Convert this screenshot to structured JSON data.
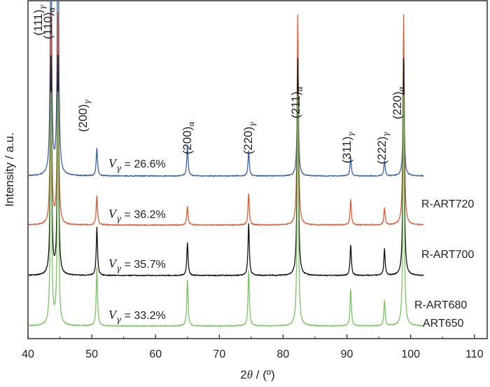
{
  "chart_data": {
    "type": "line",
    "xlabel": {
      "main": "2",
      "italic": "θ",
      "rest": " / (º)"
    },
    "ylabel": "Intensity / a.u.",
    "xlim": [
      40,
      112
    ],
    "x_ticks": [
      40,
      50,
      60,
      70,
      80,
      90,
      100,
      110
    ],
    "grid": false,
    "peaks": [
      {
        "hkl": "(111)",
        "phase": "γ",
        "x": 43.6
      },
      {
        "hkl": "(110)",
        "phase": "α",
        "x": 44.7
      },
      {
        "hkl": "(200)",
        "phase": "γ",
        "x": 50.8
      },
      {
        "hkl": "(200)",
        "phase": "α",
        "x": 65.0
      },
      {
        "hkl": "(220)",
        "phase": "γ",
        "x": 74.6
      },
      {
        "hkl": "(211)",
        "phase": "α",
        "x": 82.3
      },
      {
        "hkl": "(311)",
        "phase": "γ",
        "x": 90.6
      },
      {
        "hkl": "(222)",
        "phase": "γ",
        "x": 95.9
      },
      {
        "hkl": "(220)",
        "phase": "α",
        "x": 98.9
      }
    ],
    "series": [
      {
        "name": "R-ART720",
        "color": "#3a62b0",
        "vgamma": "26.6%",
        "peaks": [
          [
            43.6,
            0.9
          ],
          [
            44.7,
            1.0
          ],
          [
            50.8,
            0.09
          ],
          [
            65.0,
            0.1
          ],
          [
            74.6,
            0.08
          ],
          [
            82.3,
            0.38
          ],
          [
            90.6,
            0.06
          ],
          [
            95.9,
            0.05
          ],
          [
            98.9,
            0.33
          ]
        ]
      },
      {
        "name": "R-ART700",
        "color": "#e05a35",
        "vgamma": "36.2%",
        "peaks": [
          [
            43.6,
            1.0
          ],
          [
            44.7,
            1.0
          ],
          [
            50.8,
            0.14
          ],
          [
            65.0,
            0.09
          ],
          [
            74.6,
            0.15
          ],
          [
            82.3,
            1.0
          ],
          [
            90.6,
            0.12
          ],
          [
            95.9,
            0.08
          ],
          [
            98.9,
            1.0
          ]
        ]
      },
      {
        "name": "R-ART680",
        "color": "#111111",
        "vgamma": "35.7%",
        "peaks": [
          [
            43.6,
            1.0
          ],
          [
            44.7,
            1.0
          ],
          [
            50.8,
            0.22
          ],
          [
            65.0,
            0.15
          ],
          [
            74.6,
            0.24
          ],
          [
            82.3,
            1.0
          ],
          [
            90.6,
            0.14
          ],
          [
            95.9,
            0.12
          ],
          [
            98.9,
            1.0
          ]
        ]
      },
      {
        "name": "ART650",
        "color": "#79c461",
        "vgamma": "33.2%",
        "peaks": [
          [
            43.6,
            1.0
          ],
          [
            44.7,
            1.0
          ],
          [
            50.8,
            0.25
          ],
          [
            65.0,
            0.2
          ],
          [
            74.6,
            0.24
          ],
          [
            82.3,
            1.0
          ],
          [
            90.6,
            0.16
          ],
          [
            95.9,
            0.11
          ],
          [
            98.9,
            1.0
          ]
        ]
      }
    ],
    "vgamma_prefix": "V",
    "vgamma_sub": "γ",
    "vgamma_eq": " = "
  }
}
